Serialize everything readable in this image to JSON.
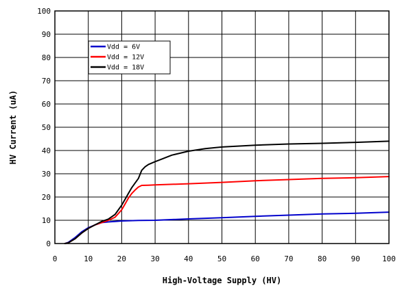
{
  "chart_data": {
    "type": "line",
    "xlabel": "High-Voltage Supply (HV)",
    "ylabel": "HV Current (uA)",
    "xlim": [
      0,
      100
    ],
    "ylim": [
      0,
      100
    ],
    "xticks": [
      0,
      10,
      20,
      30,
      40,
      50,
      60,
      70,
      80,
      90,
      100
    ],
    "yticks": [
      0,
      10,
      20,
      30,
      40,
      50,
      60,
      70,
      80,
      90,
      100
    ],
    "grid": true,
    "legend_position": "top-left",
    "series": [
      {
        "name": "Vdd = 6V",
        "color": "#0000cc",
        "x": [
          3,
          4,
          6,
          8,
          10,
          12,
          14,
          16,
          18,
          20,
          25,
          30,
          40,
          50,
          60,
          70,
          80,
          90,
          100
        ],
        "y": [
          0,
          0.5,
          2.5,
          5,
          6.8,
          8,
          9,
          9.3,
          9.5,
          9.7,
          9.9,
          10,
          10.6,
          11.1,
          11.7,
          12.2,
          12.7,
          13,
          13.5
        ]
      },
      {
        "name": "Vdd = 12V",
        "color": "#ff0000",
        "x": [
          3,
          4,
          6,
          8,
          10,
          12,
          14,
          16,
          18,
          20,
          21,
          22,
          23,
          24,
          25,
          26,
          28,
          30,
          40,
          50,
          60,
          70,
          80,
          90,
          100
        ],
        "y": [
          0,
          0.3,
          2,
          4.5,
          6.5,
          8,
          9,
          10,
          11.3,
          14.5,
          17,
          19.5,
          21.5,
          23,
          24.3,
          25,
          25.1,
          25.2,
          25.7,
          26.3,
          27,
          27.5,
          28,
          28.3,
          28.8
        ]
      },
      {
        "name": "Vdd = 18V",
        "color": "#000000",
        "x": [
          3,
          4,
          6,
          8,
          10,
          12,
          14,
          16,
          18,
          20,
          21,
          22,
          23,
          24,
          25,
          26,
          27,
          28,
          30,
          32,
          35,
          40,
          45,
          50,
          60,
          70,
          80,
          90,
          100
        ],
        "y": [
          0,
          0.3,
          2,
          4.5,
          6.5,
          8,
          9.5,
          10.5,
          12.5,
          16.5,
          19,
          21.5,
          24,
          26,
          28,
          31.5,
          33,
          34,
          35.2,
          36.3,
          38,
          39.7,
          40.8,
          41.5,
          42.3,
          42.8,
          43.1,
          43.5,
          44
        ]
      }
    ]
  }
}
